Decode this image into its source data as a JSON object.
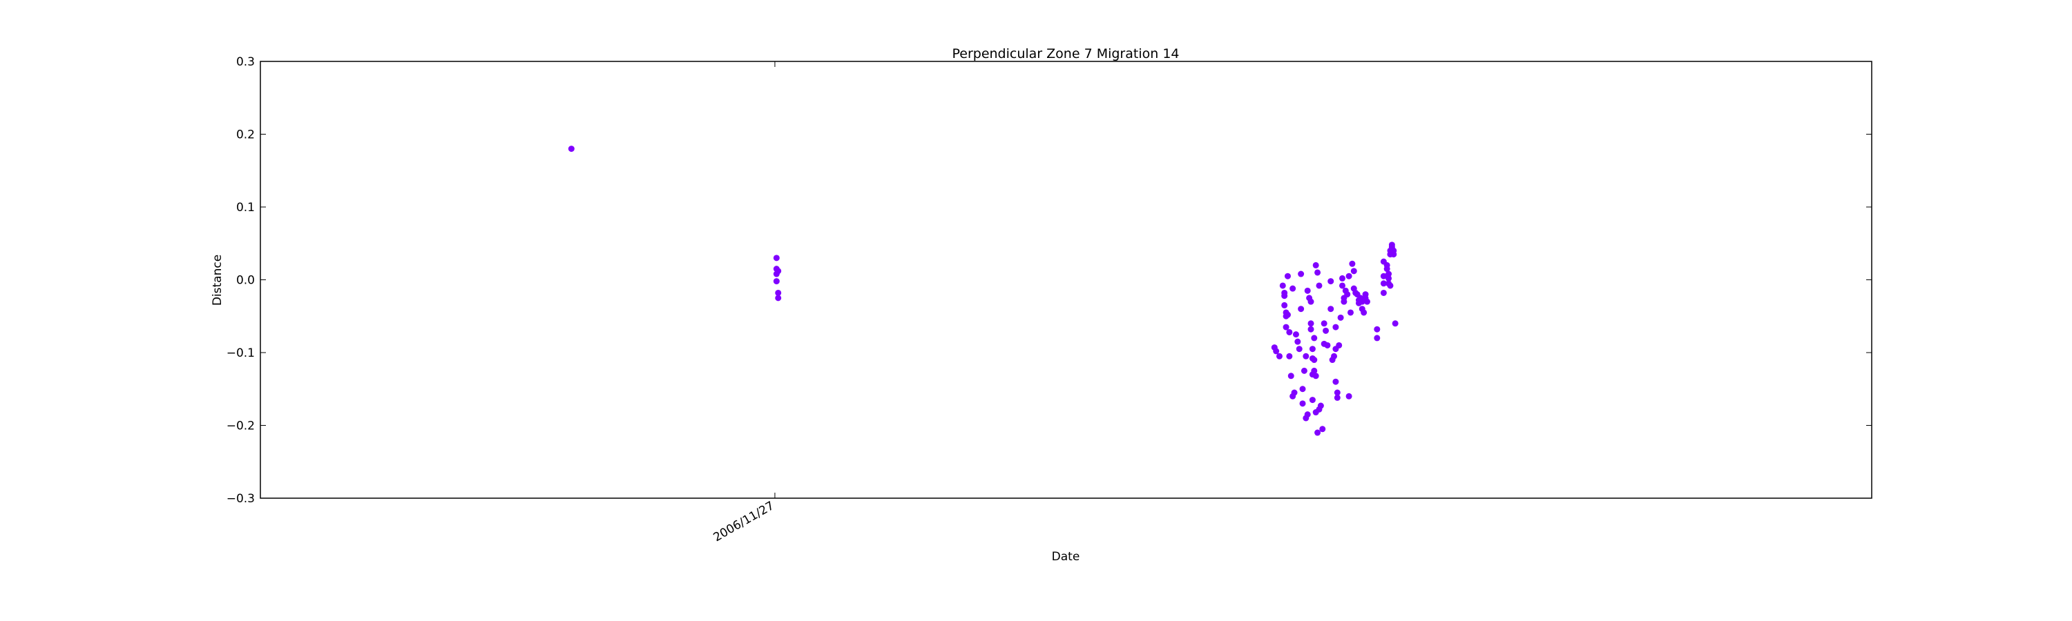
{
  "chart_data": {
    "type": "scatter",
    "title": "Perpendicular Zone 7 Migration 14",
    "xlabel": "Date",
    "ylabel": "Distance",
    "ylim": [
      -0.3,
      0.3
    ],
    "yticks": [
      "0.3",
      "0.2",
      "0.1",
      "0.0",
      "−0.1",
      "−0.2",
      "−0.3"
    ],
    "xticks": [
      "2006/11/27"
    ],
    "grid": false,
    "point_color": "#8000ff",
    "series": [
      {
        "x": [
          "2006/07/27",
          "2006/11/28",
          "2006/11/28",
          "2006/11/28",
          "2006/11/28",
          "2006/11/29",
          "2006/11/29",
          "2006/11/29",
          "2007/09/25",
          "2007/09/26",
          "2007/09/28",
          "2007/09/30",
          "2007/10/01",
          "2007/10/01",
          "2007/10/01",
          "2007/10/02",
          "2007/10/02",
          "2007/10/02",
          "2007/10/03",
          "2007/10/03",
          "2007/10/04",
          "2007/10/04",
          "2007/10/05",
          "2007/10/06",
          "2007/10/06",
          "2007/10/07",
          "2007/10/08",
          "2007/10/09",
          "2007/10/10",
          "2007/10/11",
          "2007/10/11",
          "2007/10/12",
          "2007/10/12",
          "2007/10/13",
          "2007/10/14",
          "2007/10/14",
          "2007/10/15",
          "2007/10/15",
          "2007/10/16",
          "2007/10/17",
          "2007/10/17",
          "2007/10/17",
          "2007/10/18",
          "2007/10/18",
          "2007/10/18",
          "2007/10/18",
          "2007/10/19",
          "2007/10/19",
          "2007/10/19",
          "2007/10/20",
          "2007/10/20",
          "2007/10/20",
          "2007/10/21",
          "2007/10/21",
          "2007/10/22",
          "2007/10/22",
          "2007/10/23",
          "2007/10/24",
          "2007/10/25",
          "2007/10/25",
          "2007/10/26",
          "2007/10/27",
          "2007/10/29",
          "2007/10/29",
          "2007/10/30",
          "2007/10/31",
          "2007/11/01",
          "2007/11/01",
          "2007/11/01",
          "2007/11/02",
          "2007/11/02",
          "2007/11/03",
          "2007/11/04",
          "2007/11/05",
          "2007/11/05",
          "2007/11/06",
          "2007/11/06",
          "2007/11/07",
          "2007/11/08",
          "2007/11/09",
          "2007/11/09",
          "2007/11/10",
          "2007/11/11",
          "2007/11/12",
          "2007/11/12",
          "2007/11/13",
          "2007/11/14",
          "2007/11/15",
          "2007/11/15",
          "2007/11/16",
          "2007/11/17",
          "2007/11/17",
          "2007/11/18",
          "2007/11/19",
          "2007/11/19",
          "2007/11/20",
          "2007/11/26",
          "2007/11/26",
          "2007/11/30",
          "2007/11/30",
          "2007/11/30",
          "2007/11/30",
          "2007/12/02",
          "2007/12/02",
          "2007/12/03",
          "2007/12/03",
          "2007/12/03",
          "2007/12/04",
          "2007/12/04",
          "2007/12/04",
          "2007/12/05",
          "2007/12/05",
          "2007/12/06",
          "2007/12/06",
          "2007/12/07"
        ],
        "y": [
          0.18,
          0.03,
          0.015,
          0.008,
          -0.002,
          -0.018,
          -0.025,
          0.012,
          -0.093,
          -0.098,
          -0.105,
          -0.008,
          -0.018,
          -0.022,
          -0.035,
          -0.045,
          -0.05,
          -0.065,
          -0.048,
          0.005,
          -0.072,
          -0.105,
          -0.132,
          -0.16,
          -0.012,
          -0.155,
          -0.075,
          -0.085,
          -0.095,
          -0.04,
          0.008,
          -0.17,
          -0.15,
          -0.125,
          -0.19,
          -0.105,
          -0.185,
          -0.015,
          -0.025,
          -0.03,
          -0.06,
          -0.068,
          -0.095,
          -0.108,
          -0.13,
          -0.165,
          -0.08,
          -0.11,
          -0.125,
          0.02,
          -0.132,
          -0.182,
          -0.21,
          0.01,
          -0.008,
          -0.178,
          -0.173,
          -0.205,
          -0.088,
          -0.06,
          -0.07,
          -0.09,
          -0.002,
          -0.04,
          -0.11,
          -0.105,
          -0.14,
          -0.065,
          -0.095,
          -0.155,
          -0.162,
          -0.09,
          -0.052,
          0.002,
          -0.008,
          -0.025,
          -0.03,
          -0.015,
          -0.02,
          -0.16,
          0.005,
          -0.045,
          0.022,
          0.012,
          -0.012,
          -0.018,
          -0.02,
          -0.028,
          -0.032,
          -0.025,
          -0.03,
          -0.04,
          -0.045,
          -0.02,
          -0.025,
          -0.03,
          -0.068,
          -0.08,
          0.025,
          0.005,
          -0.005,
          -0.018,
          0.02,
          0.015,
          0.008,
          0.002,
          -0.005,
          0.035,
          0.04,
          -0.008,
          0.045,
          0.048,
          0.04,
          0.035,
          -0.06
        ]
      }
    ]
  }
}
